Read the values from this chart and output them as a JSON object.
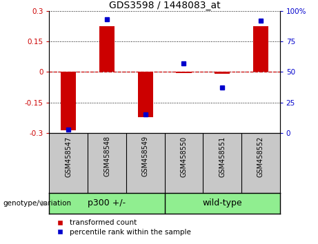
{
  "title": "GDS3598 / 1448083_at",
  "samples": [
    "GSM458547",
    "GSM458548",
    "GSM458549",
    "GSM458550",
    "GSM458551",
    "GSM458552"
  ],
  "transformed_count": [
    -0.285,
    0.225,
    -0.222,
    -0.005,
    -0.008,
    0.225
  ],
  "percentile_rank": [
    3,
    93,
    15,
    57,
    37,
    92
  ],
  "ylim_left": [
    -0.3,
    0.3
  ],
  "ylim_right": [
    0,
    100
  ],
  "yticks_left": [
    -0.3,
    -0.15,
    0,
    0.15,
    0.3
  ],
  "yticks_right": [
    0,
    25,
    50,
    75,
    100
  ],
  "ytick_labels_left": [
    "-0.3",
    "-0.15",
    "0",
    "0.15",
    "0.3"
  ],
  "ytick_labels_right": [
    "0",
    "25",
    "50",
    "75",
    "100%"
  ],
  "group_labels": [
    "p300 +/-",
    "wild-type"
  ],
  "group_ranges": [
    [
      0,
      3
    ],
    [
      3,
      6
    ]
  ],
  "bar_color": "#CC0000",
  "point_color": "#0000CC",
  "zero_line_color": "#CC0000",
  "legend_items": [
    "transformed count",
    "percentile rank within the sample"
  ],
  "genotype_label": "genotype/variation",
  "background_plot": "#FFFFFF",
  "background_xlabel": "#C8C8C8",
  "background_group": "#90EE90"
}
